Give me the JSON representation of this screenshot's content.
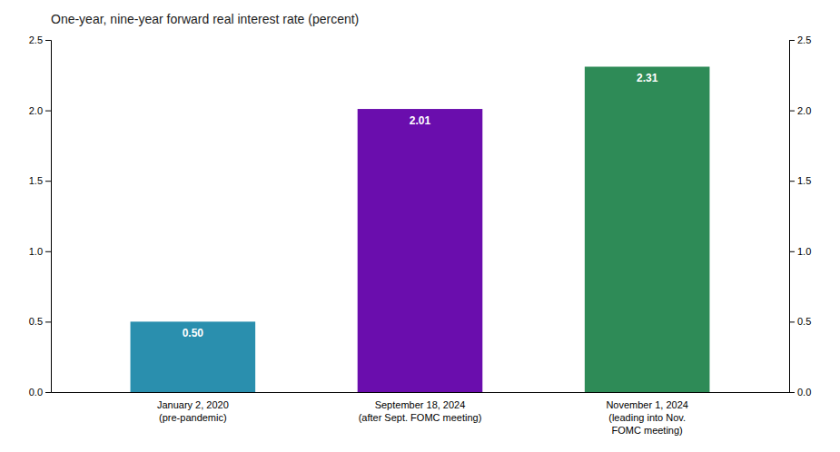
{
  "chart_data": {
    "type": "bar",
    "title": "One-year, nine-year forward real interest rate (percent)",
    "categories": [
      "January 2, 2020\n(pre-pandemic)",
      "September 18, 2024\n(after Sept. FOMC meeting)",
      "November 1, 2024\n(leading into Nov.\nFOMC meeting)"
    ],
    "values": [
      0.5,
      2.01,
      2.31
    ],
    "value_labels": [
      "0.50",
      "2.01",
      "2.31"
    ],
    "data_labels": true,
    "colors": [
      "#2a8fae",
      "#6a0dad",
      "#2e8b57"
    ],
    "ylim": [
      0,
      2.5
    ],
    "yticks": [
      {
        "value": 0.0,
        "label": "0.0"
      },
      0.5,
      {
        "value": 1.0,
        "label": "1.0"
      },
      1.5,
      {
        "value": 2.0,
        "label": "2.0"
      },
      2.5
    ],
    "y2lim": [
      0,
      2.5
    ],
    "y2ticks": [
      {
        "value": 0.0,
        "label": "0.0"
      },
      0.5,
      {
        "value": 1.0,
        "label": "1.0"
      },
      1.5,
      {
        "value": 2.0,
        "label": "2.0"
      },
      2.5
    ],
    "grid": false
  }
}
